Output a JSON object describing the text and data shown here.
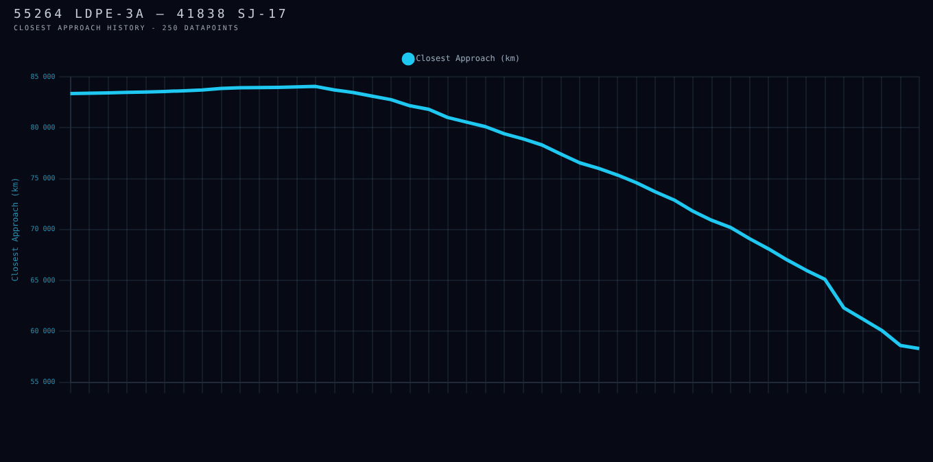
{
  "chart_data": {
    "type": "line",
    "title": "55264 LDPE-3A — 41838 SJ-17",
    "subtitle": "CLOSEST APPROACH HISTORY - 250 DATAPOINTS",
    "ylabel": "Closest Approach (km)",
    "categories": [
      null,
      null,
      null,
      null,
      null,
      null,
      null,
      null,
      null,
      null,
      null,
      null,
      null,
      null,
      null,
      null,
      null,
      null,
      null,
      null,
      null,
      null,
      null,
      null,
      null,
      null,
      null,
      null,
      null,
      null,
      null,
      null,
      null,
      null,
      null,
      null,
      null,
      null,
      null,
      null,
      null,
      null,
      null,
      null,
      null,
      null
    ],
    "series": [
      {
        "name": "Closest Approach (km)",
        "color": "#1ec8f0",
        "values": [
          83350,
          83380,
          83420,
          83460,
          83500,
          83560,
          83620,
          83700,
          83850,
          83920,
          83940,
          83960,
          84000,
          84050,
          83700,
          83450,
          83100,
          82750,
          82150,
          81800,
          81000,
          80550,
          80100,
          79400,
          78900,
          78300,
          77400,
          76550,
          76000,
          75350,
          74600,
          73700,
          72900,
          71800,
          70900,
          70200,
          69100,
          68100,
          67000,
          66000,
          65100,
          62300,
          61200,
          60100,
          58600,
          58300
        ]
      }
    ],
    "ylim": [
      55000,
      85000
    ],
    "yticks": [
      {
        "value": 55000,
        "label": "55 000"
      },
      {
        "value": 60000,
        "label": "60 000"
      },
      {
        "value": 65000,
        "label": "65 000"
      },
      {
        "value": 70000,
        "label": "70 000"
      },
      {
        "value": 75000,
        "label": "75 000"
      },
      {
        "value": 80000,
        "label": "80 000"
      },
      {
        "value": 85000,
        "label": "85 000"
      }
    ],
    "grid": true,
    "legend": "top",
    "marker": "none",
    "line_style": "solid"
  }
}
